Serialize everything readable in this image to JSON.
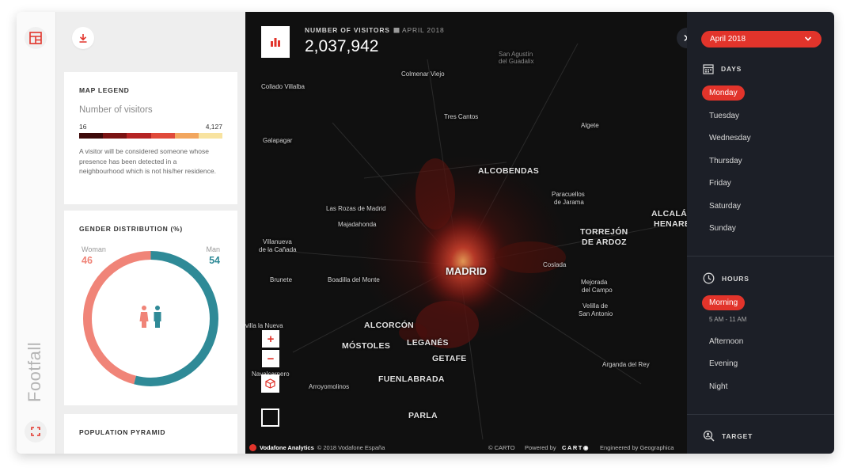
{
  "app": {
    "title": "Footfall"
  },
  "panels": {
    "legend": {
      "title": "MAP LEGEND",
      "subtitle": "Number of visitors",
      "min": "16",
      "max": "4,127",
      "colors": [
        "#3d0a0a",
        "#7a1313",
        "#b52424",
        "#e04a3a",
        "#f2a65e",
        "#f8e3a0"
      ],
      "note": "A visitor will be considered someone whose presence has been detected in a neighbourhood which is not his/her residence."
    },
    "gender": {
      "title": "GENDER DISTRIBUTION (%)",
      "woman_label": "Woman",
      "woman_value": "46",
      "man_label": "Man",
      "man_value": "54",
      "woman_color": "#f08478",
      "man_color": "#2f8a97"
    },
    "pyramid": {
      "title": "POPULATION PYRAMID"
    }
  },
  "map": {
    "stat_label": "NUMBER OF VISITORS",
    "stat_date": "APRIL 2018",
    "stat_value": "2,037,942",
    "places": {
      "san_agustin": "San Agustín",
      "san_agustin_2": "del Guadalix",
      "colmenar": "Colmenar Viejo",
      "collado": "Collado Villalba",
      "tres_cantos": "Tres Cantos",
      "algete": "Algete",
      "galapagar": "Galapagar",
      "alcobendas": "ALCOBENDAS",
      "paracuellos": "Paracuellos",
      "paracuellos_2": "de Jarama",
      "las_rozas": "Las Rozas de Madrid",
      "majadahonda": "Majadahonda",
      "alcala": "ALCALÁ D",
      "alcala_2": "HENARE",
      "torrejon": "TORREJÓN",
      "torrejon_2": "DE ARDOZ",
      "villanueva": "Villanueva",
      "villanueva_2": "de la Cañada",
      "madrid": "MADRID",
      "coslada": "Coslada",
      "brunete": "Brunete",
      "boadilla": "Boadilla del Monte",
      "mejorada": "Mejorada",
      "mejorada_2": "del Campo",
      "villalba_s": "villa la Nueva",
      "alcorcon": "ALCORCÓN",
      "velilla": "Velilla de",
      "velilla_2": "San Antonio",
      "mostoles": "MÓSTOLES",
      "leganes": "LEGANÉS",
      "getafe": "GETAFE",
      "navalcarnero": "Navalcarnero",
      "arganda": "Arganda del Rey",
      "arroyomolinos": "Arroyomolinos",
      "fuenlabrada": "FUENLABRADA",
      "parla": "PARLA"
    },
    "zoom_in": "+",
    "zoom_out": "−",
    "footer": {
      "brand": "Vodafone Analytics",
      "copyright": "© 2018 Vodafone España",
      "carto": "© CARTO",
      "powered": "Powered by",
      "carto_logo": "CART◉",
      "engineered": "Engineered by  Geographica"
    }
  },
  "sidebar": {
    "month": "April 2018",
    "days_title": "DAYS",
    "days": [
      "Monday",
      "Tuesday",
      "Wednesday",
      "Thursday",
      "Friday",
      "Saturday",
      "Sunday"
    ],
    "hours_title": "HOURS",
    "hours_selected": "Morning",
    "hours_selected_range": "5 AM - 11 AM",
    "hours": [
      "Afternoon",
      "Evening",
      "Night"
    ],
    "target_title": "TARGET"
  }
}
